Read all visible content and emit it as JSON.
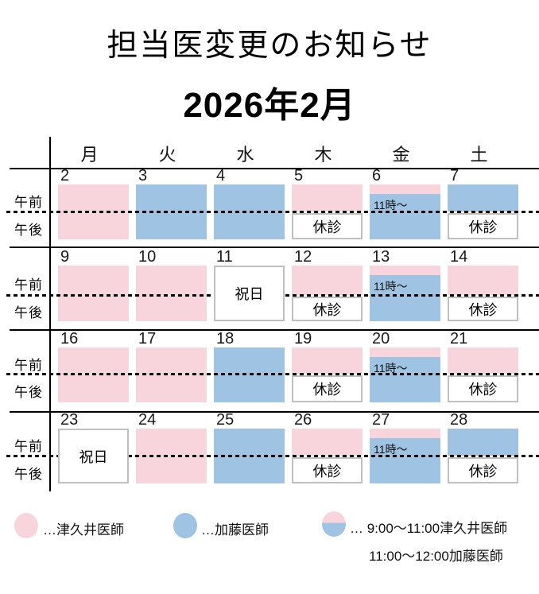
{
  "title": "担当医変更のお知らせ",
  "month": "2026年2月",
  "weekday_headers": [
    "月",
    "火",
    "水",
    "木",
    "金",
    "土"
  ],
  "row_labels": {
    "am": "午前",
    "pm": "午後"
  },
  "labels": {
    "closed": "休診",
    "holiday": "祝日",
    "from11": "11時～"
  },
  "colors": {
    "pink": "#f8d5dd",
    "blue": "#9fc3e3",
    "box_border": "#bfbfbf"
  },
  "doctors": {
    "pink": "津久井医師",
    "blue": "加藤医師"
  },
  "weeks": [
    {
      "days": [
        {
          "num": "2",
          "type": "full-pink"
        },
        {
          "num": "3",
          "type": "full-blue"
        },
        {
          "num": "4",
          "type": "full-blue"
        },
        {
          "num": "5",
          "type": "am-pink-pm-closed"
        },
        {
          "num": "6",
          "type": "split"
        },
        {
          "num": "7",
          "type": "am-blue-pm-closed"
        }
      ]
    },
    {
      "days": [
        {
          "num": "9",
          "type": "full-pink"
        },
        {
          "num": "10",
          "type": "full-pink"
        },
        {
          "num": "11",
          "type": "holiday"
        },
        {
          "num": "12",
          "type": "am-pink-pm-closed"
        },
        {
          "num": "13",
          "type": "split"
        },
        {
          "num": "14",
          "type": "am-pink-pm-closed"
        }
      ]
    },
    {
      "days": [
        {
          "num": "16",
          "type": "full-pink"
        },
        {
          "num": "17",
          "type": "full-pink"
        },
        {
          "num": "18",
          "type": "full-blue"
        },
        {
          "num": "19",
          "type": "am-pink-pm-closed"
        },
        {
          "num": "20",
          "type": "split"
        },
        {
          "num": "21",
          "type": "am-pink-pm-closed"
        }
      ]
    },
    {
      "days": [
        {
          "num": "23",
          "type": "holiday"
        },
        {
          "num": "24",
          "type": "full-pink"
        },
        {
          "num": "25",
          "type": "full-blue"
        },
        {
          "num": "26",
          "type": "am-pink-pm-closed"
        },
        {
          "num": "27",
          "type": "split"
        },
        {
          "num": "28",
          "type": "am-blue-pm-closed"
        }
      ]
    }
  ],
  "legend": [
    {
      "swatch": "pink",
      "text": "…津久井医師"
    },
    {
      "swatch": "blue",
      "text": "…加藤医師"
    },
    {
      "swatch": "split",
      "text": "… 9:00～11:00津久井医師",
      "text2": "11:00～12:00加藤医師"
    }
  ]
}
